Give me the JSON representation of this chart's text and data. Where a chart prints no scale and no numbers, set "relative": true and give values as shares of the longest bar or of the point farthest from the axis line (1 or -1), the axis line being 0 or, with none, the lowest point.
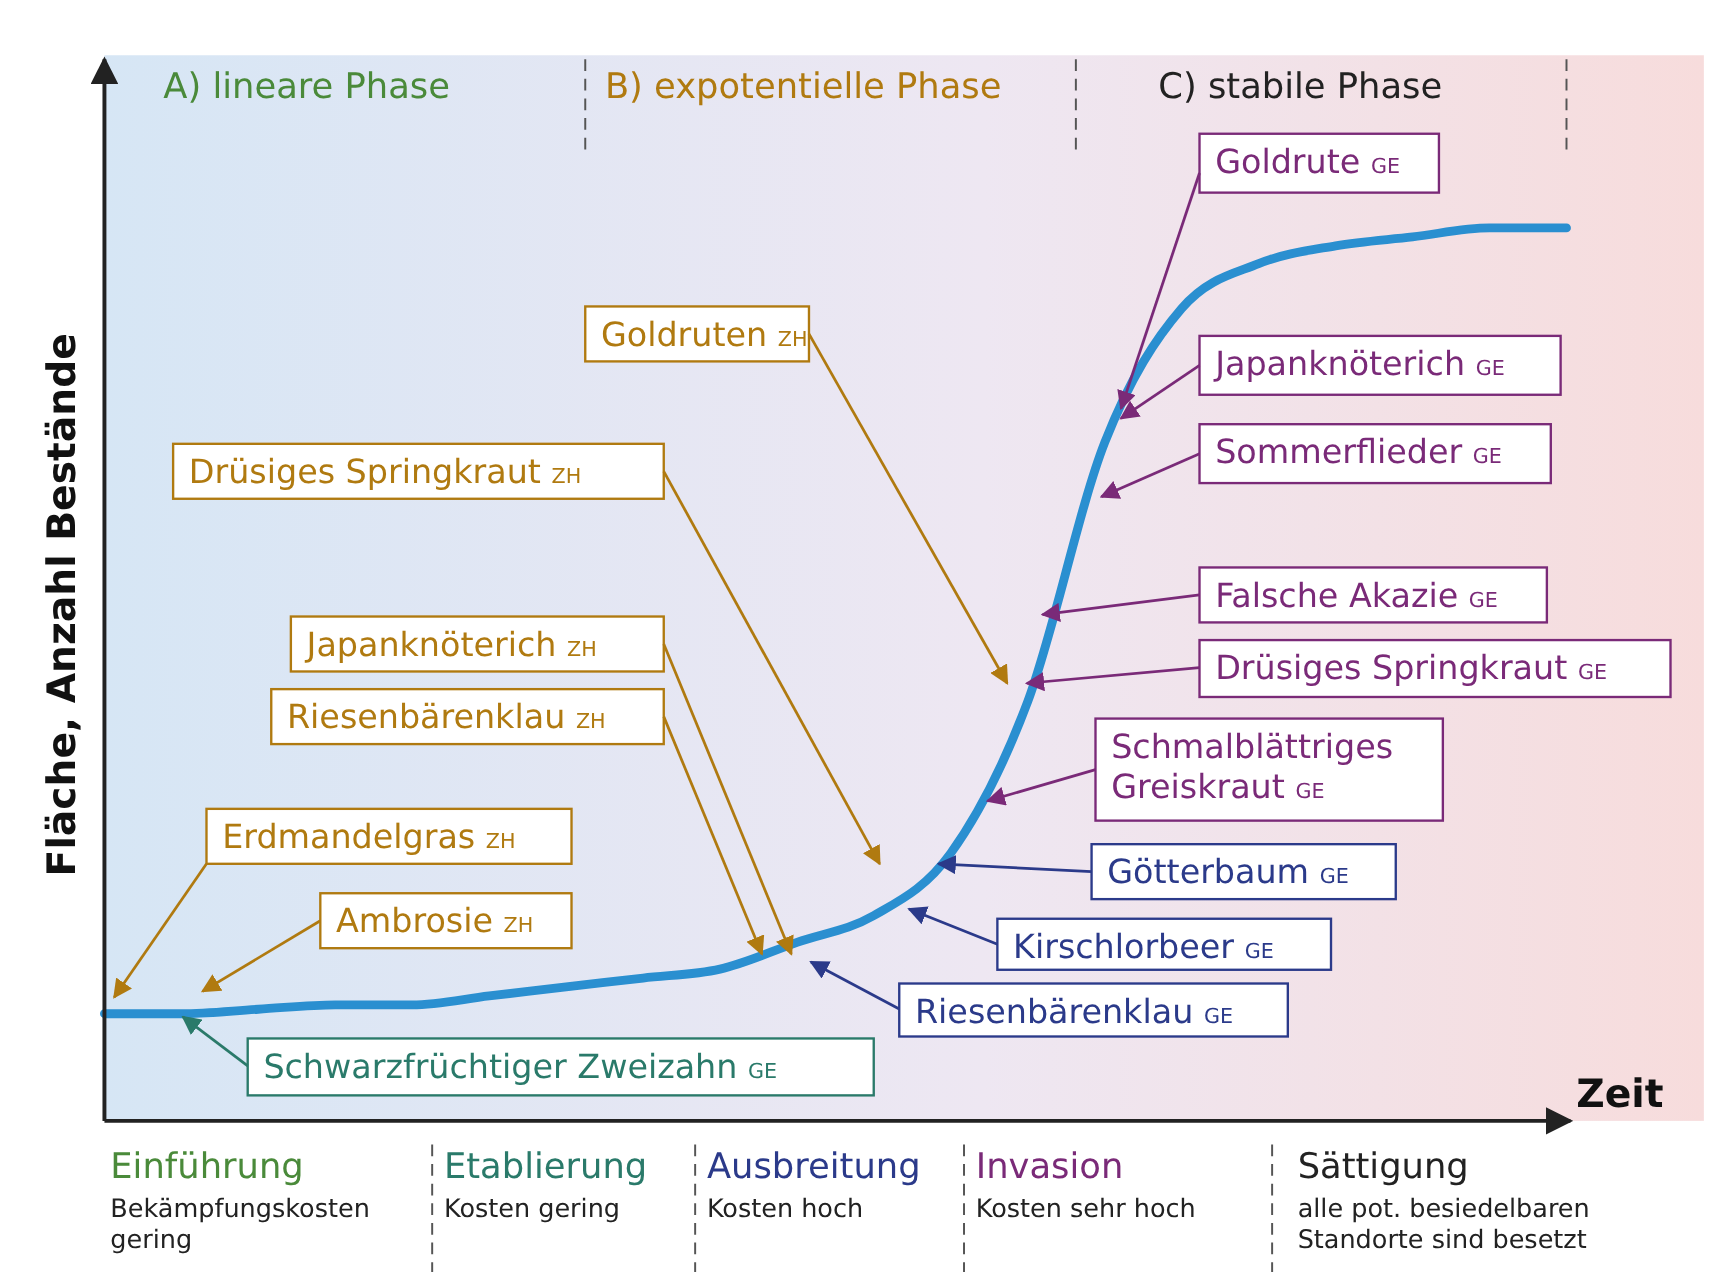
{
  "chart_data": {
    "type": "line",
    "relative": true,
    "xlabel": "Zeit",
    "ylabel": "Fläche, Anzahl Bestände",
    "categories": [
      null,
      null,
      null,
      null,
      null,
      null,
      null,
      null,
      null,
      null,
      null,
      null,
      null,
      null,
      null,
      null,
      null,
      null,
      null,
      null
    ],
    "series": [
      {
        "color": "#2a8fd0",
        "values": [
          0.12,
          0.12,
          0.125,
          0.13,
          0.13,
          0.14,
          0.15,
          0.16,
          0.17,
          0.2,
          0.23,
          0.3,
          0.47,
          0.76,
          0.91,
          0.96,
          0.98,
          0.99,
          1.0,
          1.0
        ]
      }
    ],
    "marker": "none",
    "line_style": "solid",
    "annotations": [
      "A) lineare Phase",
      "B) expotentielle Phase",
      "C) stabile Phase",
      "Goldruten ZH",
      "Drüsiges Springkraut ZH",
      "Japanknöterich ZH",
      "Riesenbärenklau ZH",
      "Erdmandelgras ZH",
      "Ambrosie ZH",
      "Goldrute GE",
      "Japanknöterich GE",
      "Sommerflieder GE",
      "Falsche Akazie GE",
      "Drüsiges Springkraut GE",
      "Schmalblättriges\nGreiskraut GE",
      "Götterbaum GE",
      "Kirschlorbeer GE",
      "Riesenbärenklau GE",
      "Schwarzfrüchtiger Zweizahn GE",
      "Einführung",
      "Etablierung",
      "Ausbreitung",
      "Invasion",
      "Sättigung",
      "Bekämpfungskosten\ngering",
      "Kosten gering",
      "Kosten hoch",
      "Kosten sehr hoch",
      "alle pot. besiedelbaren\nStandorte sind besetzt"
    ]
  }
}
